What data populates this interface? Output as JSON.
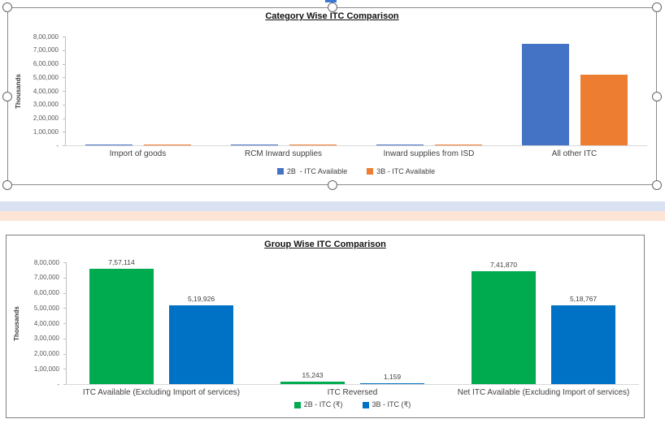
{
  "decor": {
    "row_band_top_color": "#d9e1f2",
    "row_band_bottom_color": "#fce4d6",
    "selection_frame_color": "#8a8a8a",
    "clipped_fragment_color": "#3b77d8"
  },
  "chart_data": [
    {
      "type": "bar",
      "title": "Category Wise ITC Comparison",
      "y_axis_title": "Thousands",
      "y_ticks": [
        "8,00,000",
        "7,00,000",
        "6,00,000",
        "5,00,000",
        "4,00,000",
        "3,00,000",
        "2,00,000",
        "1,00,000",
        "-"
      ],
      "ylim": [
        0,
        800000
      ],
      "grid": false,
      "legend_position": "bottom",
      "selected": true,
      "categories": [
        "Import of goods",
        "RCM Inward supplies",
        "Inward supplies from ISD",
        "All other ITC"
      ],
      "series": [
        {
          "name": "2B  - ITC Available",
          "color": "#4472c4",
          "values": [
            7000,
            7000,
            7000,
            746000
          ]
        },
        {
          "name": "3B - ITC Available",
          "color": "#ed7d31",
          "values": [
            7000,
            7000,
            7000,
            519000
          ]
        }
      ]
    },
    {
      "type": "bar",
      "title": "Group Wise ITC Comparison",
      "y_axis_title": "Thousands",
      "y_ticks": [
        "8,00,000",
        "7,00,000",
        "6,00,000",
        "5,00,000",
        "4,00,000",
        "3,00,000",
        "2,00,000",
        "1,00,000",
        "-"
      ],
      "ylim": [
        0,
        800000
      ],
      "grid": false,
      "legend_position": "bottom",
      "selected": false,
      "categories": [
        "ITC Available (Excluding Import of services)",
        "ITC Reversed",
        "Net ITC Available (Excluding Import of services)"
      ],
      "series": [
        {
          "name": "2B - ITC (₹)",
          "color": "#00ab50",
          "values": [
            757114,
            15243,
            741870
          ],
          "data_labels": [
            "7,57,114",
            "15,243",
            "7,41,870"
          ]
        },
        {
          "name": "3B - ITC (₹)",
          "color": "#0072c6",
          "values": [
            519926,
            1159,
            518767
          ],
          "data_labels": [
            "5,19,926",
            "1,159",
            "5,18,767"
          ]
        }
      ]
    }
  ]
}
